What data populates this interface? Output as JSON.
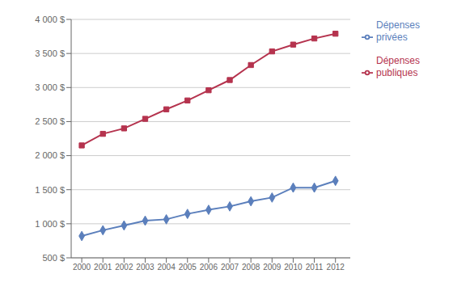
{
  "chart_data": {
    "type": "line",
    "x": [
      2000,
      2001,
      2002,
      2003,
      2004,
      2005,
      2006,
      2007,
      2008,
      2009,
      2010,
      2011,
      2012
    ],
    "xlim": [
      1999.5,
      2012.7
    ],
    "xticks": [
      2000,
      2001,
      2002,
      2003,
      2004,
      2005,
      2006,
      2007,
      2008,
      2009,
      2010,
      2011,
      2012
    ],
    "ylim": [
      500,
      4000
    ],
    "yticks": [
      {
        "value": 500,
        "label": "500 $"
      },
      {
        "value": 1000,
        "label": "1 000 $"
      },
      {
        "value": 1500,
        "label": "1 500 $"
      },
      {
        "value": 2000,
        "label": "2 000 $"
      },
      {
        "value": 2500,
        "label": "2 500 $"
      },
      {
        "value": 3000,
        "label": "3 000 $"
      },
      {
        "value": 3500,
        "label": "3 500 $"
      },
      {
        "value": 4000,
        "label": "4 000 $"
      }
    ],
    "grid": true,
    "legend": "right",
    "series": [
      {
        "name": "Dépenses\nprivées",
        "color": "#5b7fbc",
        "marker": "diamond",
        "values": [
          820,
          905,
          975,
          1045,
          1065,
          1145,
          1205,
          1255,
          1330,
          1385,
          1530,
          1530,
          1630
        ]
      },
      {
        "name": "Dépenses\npubliques",
        "color": "#b5334e",
        "marker": "square",
        "values": [
          2150,
          2320,
          2400,
          2540,
          2680,
          2810,
          2960,
          3110,
          3330,
          3530,
          3630,
          3720,
          3790
        ]
      }
    ]
  }
}
